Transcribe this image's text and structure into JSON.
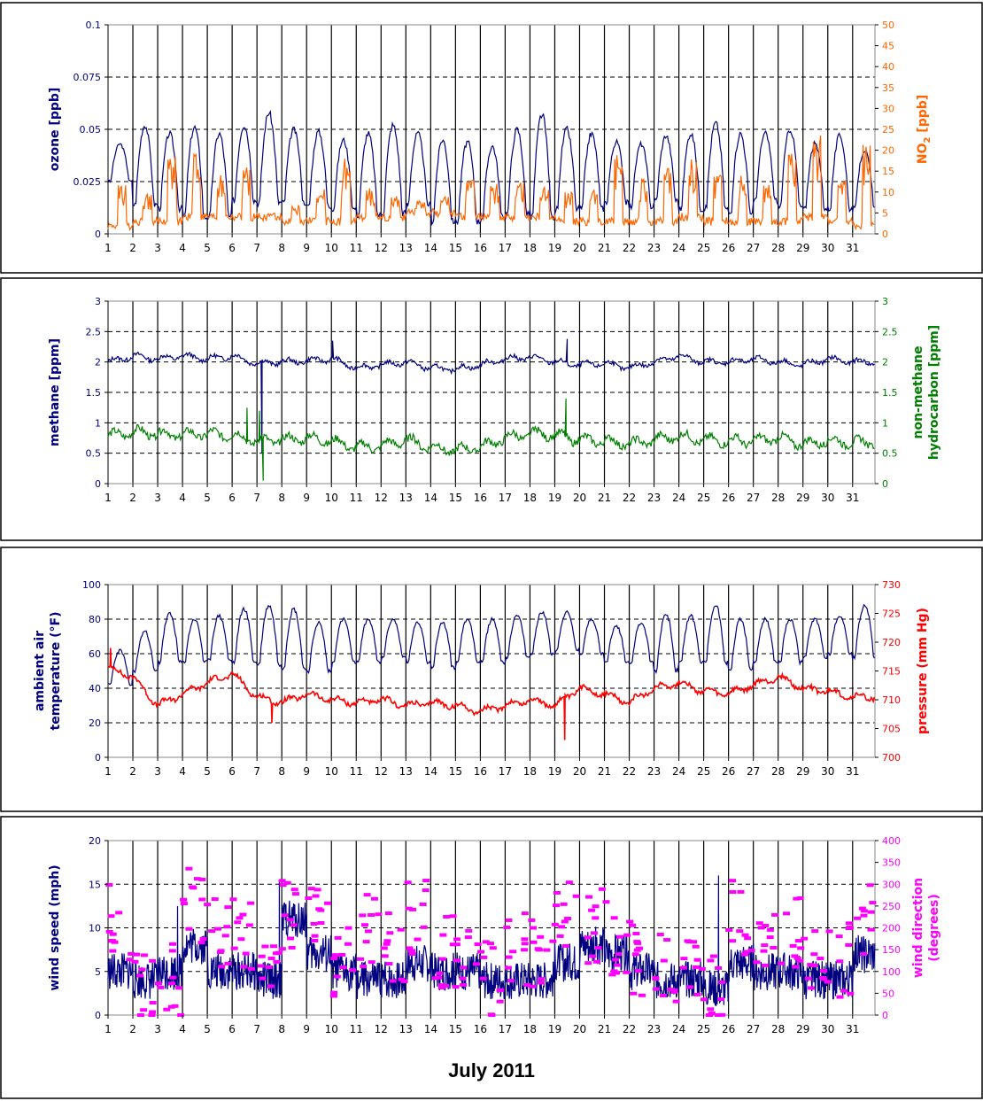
{
  "xlabel": "July 2011",
  "day_ticks": [
    "1",
    "2",
    "3",
    "4",
    "5",
    "6",
    "7",
    "8",
    "9",
    "10",
    "11",
    "12",
    "13",
    "14",
    "15",
    "16",
    "17",
    "18",
    "19",
    "20",
    "21",
    "22",
    "23",
    "24",
    "25",
    "26",
    "27",
    "28",
    "29",
    "30",
    "31"
  ],
  "chart_data": [
    {
      "type": "line",
      "x_unit": "day of July 2011",
      "xlim": [
        1,
        31.9
      ],
      "left_axis": {
        "label": "ozone [ppb]",
        "ylim": [
          0,
          0.1
        ],
        "ticks": [
          "0",
          "0.025",
          "0.05",
          "0.075",
          "0.1"
        ],
        "color": "#000080"
      },
      "right_axis": {
        "label": "NO",
        "label_subscript": "2",
        "label_suffix": " [ppb]",
        "ylim": [
          0,
          50
        ],
        "ticks": [
          "0",
          "5",
          "10",
          "15",
          "20",
          "25",
          "30",
          "35",
          "40",
          "45",
          "50"
        ],
        "color": "#ff6600"
      },
      "grid": true,
      "series": [
        {
          "name": "ozone",
          "axis": "left",
          "color": "#000080",
          "style": "diurnal",
          "min": [
            0.025,
            0.014,
            0.012,
            0.008,
            0.008,
            0.016,
            0.015,
            0.015,
            0.013,
            0.012,
            0.009,
            0.01,
            0.014,
            0.006,
            0.006,
            0.008,
            0.01,
            0.008,
            0.012,
            0.012,
            0.015,
            0.013,
            0.016,
            0.012,
            0.012,
            0.01,
            0.016,
            0.013,
            0.012,
            0.012,
            0.012
          ],
          "max": [
            0.043,
            0.052,
            0.048,
            0.051,
            0.048,
            0.052,
            0.058,
            0.05,
            0.049,
            0.045,
            0.048,
            0.052,
            0.048,
            0.045,
            0.044,
            0.042,
            0.05,
            0.057,
            0.05,
            0.048,
            0.044,
            0.043,
            0.047,
            0.048,
            0.053,
            0.048,
            0.048,
            0.05,
            0.043,
            0.047,
            0.04
          ]
        },
        {
          "name": "NO2",
          "axis": "right",
          "color": "#ff6600",
          "style": "spiky",
          "base": [
            1,
            2,
            2,
            3,
            3,
            3,
            3,
            2,
            2,
            2,
            3,
            3,
            4,
            4,
            3,
            3,
            3,
            3,
            2,
            2,
            2,
            2,
            2,
            3,
            2,
            2,
            2,
            2,
            3,
            2,
            1
          ],
          "peak": [
            12,
            10,
            19,
            22,
            14,
            16,
            5,
            7,
            11,
            19,
            11,
            9,
            8,
            9,
            13,
            12,
            13,
            12,
            10,
            11,
            19,
            14,
            16,
            18,
            15,
            14,
            12,
            20,
            24,
            13,
            22
          ]
        }
      ]
    },
    {
      "type": "line",
      "x_unit": "day of July 2011",
      "xlim": [
        1,
        31.9
      ],
      "left_axis": {
        "label": "methane [ppm]",
        "ylim": [
          0,
          3
        ],
        "ticks": [
          "0",
          "0.5",
          "1",
          "1.5",
          "2",
          "2.5",
          "3"
        ],
        "color": "#000080"
      },
      "right_axis": {
        "label": "non-methane hydrocarbon [ppm]",
        "label_lines": [
          "non-methane",
          "hydrocarbon [ppm]"
        ],
        "ylim": [
          0,
          3
        ],
        "ticks": [
          "0",
          "0.5",
          "1",
          "1.5",
          "2",
          "2.5",
          "3"
        ],
        "color": "#008000"
      },
      "grid": true,
      "series": [
        {
          "name": "methane",
          "axis": "left",
          "color": "#000080",
          "style": "wobble",
          "level": [
            2.0,
            2.1,
            2.05,
            2.1,
            2.05,
            2.1,
            1.98,
            2.0,
            2.02,
            2.05,
            1.9,
            1.95,
            2.0,
            1.9,
            1.88,
            1.95,
            2.05,
            2.08,
            2.0,
            1.95,
            1.98,
            1.9,
            2.0,
            2.1,
            2.0,
            2.0,
            2.05,
            2.0,
            1.95,
            2.05,
            2.0
          ],
          "amp": 0.07,
          "dips": [
            [
              7.2,
              0.5
            ]
          ],
          "spikes": [
            [
              10.05,
              2.35
            ],
            [
              19.5,
              2.38
            ]
          ]
        },
        {
          "name": "non-methane hydrocarbon",
          "axis": "right",
          "color": "#008000",
          "style": "wobble",
          "level": [
            0.78,
            0.85,
            0.82,
            0.8,
            0.82,
            0.8,
            0.7,
            0.72,
            0.75,
            0.7,
            0.6,
            0.62,
            0.72,
            0.6,
            0.55,
            0.6,
            0.75,
            0.82,
            0.8,
            0.72,
            0.7,
            0.65,
            0.72,
            0.78,
            0.72,
            0.7,
            0.7,
            0.75,
            0.65,
            0.7,
            0.68
          ],
          "amp": 0.12,
          "dips": [
            [
              7.25,
              0.05
            ]
          ],
          "spikes": [
            [
              6.6,
              1.25
            ],
            [
              7.1,
              1.2
            ],
            [
              19.45,
              1.4
            ]
          ]
        }
      ]
    },
    {
      "type": "line",
      "x_unit": "day of July 2011",
      "xlim": [
        1,
        31.9
      ],
      "left_axis": {
        "label": "ambient air temperature (°F)",
        "label_lines": [
          "ambient air",
          "temperature (°F)"
        ],
        "ylim": [
          0,
          100
        ],
        "ticks": [
          "0",
          "20",
          "40",
          "60",
          "80",
          "100"
        ],
        "color": "#000080"
      },
      "right_axis": {
        "label": "pressure (mm Hg)",
        "ylim": [
          700,
          730
        ],
        "ticks": [
          "700",
          "705",
          "710",
          "715",
          "720",
          "725",
          "730"
        ],
        "color": "#ff0000"
      },
      "grid": true,
      "series": [
        {
          "name": "ambient air temperature",
          "axis": "left",
          "color": "#000080",
          "style": "diurnal",
          "min": [
            42,
            50,
            55,
            55,
            56,
            55,
            54,
            52,
            50,
            55,
            55,
            58,
            55,
            52,
            55,
            55,
            58,
            60,
            62,
            60,
            55,
            55,
            50,
            55,
            55,
            50,
            55,
            55,
            58,
            60,
            58
          ],
          "max": [
            62,
            73,
            83,
            80,
            82,
            86,
            88,
            86,
            78,
            80,
            80,
            80,
            78,
            78,
            80,
            80,
            82,
            84,
            84,
            80,
            76,
            78,
            83,
            82,
            88,
            80,
            80,
            80,
            80,
            82,
            88
          ]
        },
        {
          "name": "pressure",
          "axis": "right",
          "color": "#ff0000",
          "style": "wobble",
          "level": [
            715.5,
            714,
            709,
            711,
            713,
            714.5,
            710.5,
            709.5,
            711,
            710,
            709.5,
            710,
            709,
            709.5,
            709,
            708,
            709,
            710,
            709,
            712,
            711,
            709.5,
            712,
            713,
            711.5,
            711,
            712.5,
            714,
            712,
            711.5,
            710.5
          ],
          "amp": 0.8,
          "dips": [
            [
              7.6,
              706
            ],
            [
              19.4,
              703
            ]
          ],
          "spikes": [
            [
              1.1,
              719
            ]
          ]
        }
      ]
    },
    {
      "type": "line+scatter",
      "x_unit": "day of July 2011",
      "xlim": [
        1,
        31.9
      ],
      "left_axis": {
        "label": "wind speed (mph)",
        "ylim": [
          0,
          20
        ],
        "ticks": [
          "0",
          "5",
          "10",
          "15",
          "20"
        ],
        "color": "#000080"
      },
      "right_axis": {
        "label": "wind direction (degrees)",
        "label_lines": [
          "wind direction",
          "(degrees)"
        ],
        "ylim": [
          0,
          400
        ],
        "ticks": [
          "0",
          "50",
          "100",
          "150",
          "200",
          "250",
          "300",
          "350",
          "400"
        ],
        "color": "#ff00ff"
      },
      "grid": true,
      "series": [
        {
          "name": "wind speed",
          "axis": "left",
          "color": "#000080",
          "style": "noisy",
          "level": [
            5,
            4,
            5,
            8,
            5,
            5,
            4,
            11,
            7,
            5,
            4,
            4,
            6,
            5,
            5,
            4,
            4,
            4,
            6,
            8,
            7,
            5,
            4,
            4,
            3,
            6,
            5,
            5,
            4,
            4,
            7
          ],
          "amp": 2.2,
          "spikes": [
            [
              3.8,
              12.5
            ],
            [
              7.9,
              15.5
            ],
            [
              25.6,
              16
            ]
          ]
        },
        {
          "name": "wind direction",
          "axis": "right",
          "color": "#ff00ff",
          "style": "dashes",
          "center": [
            210,
            70,
            90,
            250,
            200,
            180,
            90,
            230,
            220,
            120,
            200,
            150,
            220,
            150,
            140,
            80,
            150,
            150,
            220,
            200,
            180,
            130,
            120,
            100,
            60,
            220,
            200,
            180,
            150,
            130,
            230
          ],
          "spread": 90,
          "per_day": 11
        }
      ]
    }
  ]
}
